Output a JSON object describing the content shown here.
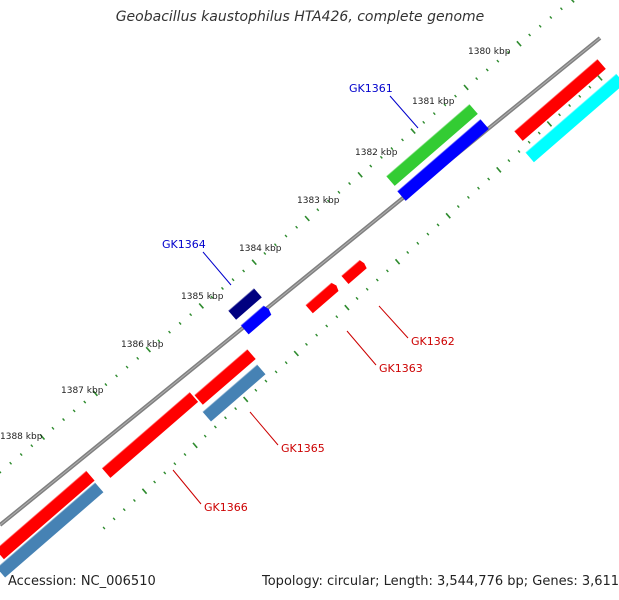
{
  "header": {
    "title": "Geobacillus kaustophilus HTA426, complete genome"
  },
  "footer": {
    "accession": "Accession: NC_006510",
    "summary": "Topology: circular; Length: 3,544,776 bp; Genes: 3,611"
  },
  "colors": {
    "backbone": "#808080",
    "tick": "#2e8b2e",
    "red": "#ff0000",
    "blue": "#0000ff",
    "navy": "#000080",
    "green": "#33cc33",
    "cyan": "#00ffff",
    "steelblue": "#4682b4",
    "label_blue": "#0000cc",
    "label_red": "#cc0000"
  },
  "scale": {
    "labels": [
      "1380 kbp",
      "1381 kbp",
      "1382 kbp",
      "1383 kbp",
      "1384 kbp",
      "1385 kbp",
      "1386 kbp",
      "1387 kbp",
      "1388 kbp"
    ]
  },
  "genes": [
    {
      "id": "GK1361",
      "color": "green"
    },
    {
      "id": "GK1362",
      "color": "red"
    },
    {
      "id": "GK1363",
      "color": "red"
    },
    {
      "id": "GK1364",
      "color": "navy"
    },
    {
      "id": "GK1365",
      "color": "steelblue"
    },
    {
      "id": "GK1366",
      "color": "red"
    }
  ]
}
